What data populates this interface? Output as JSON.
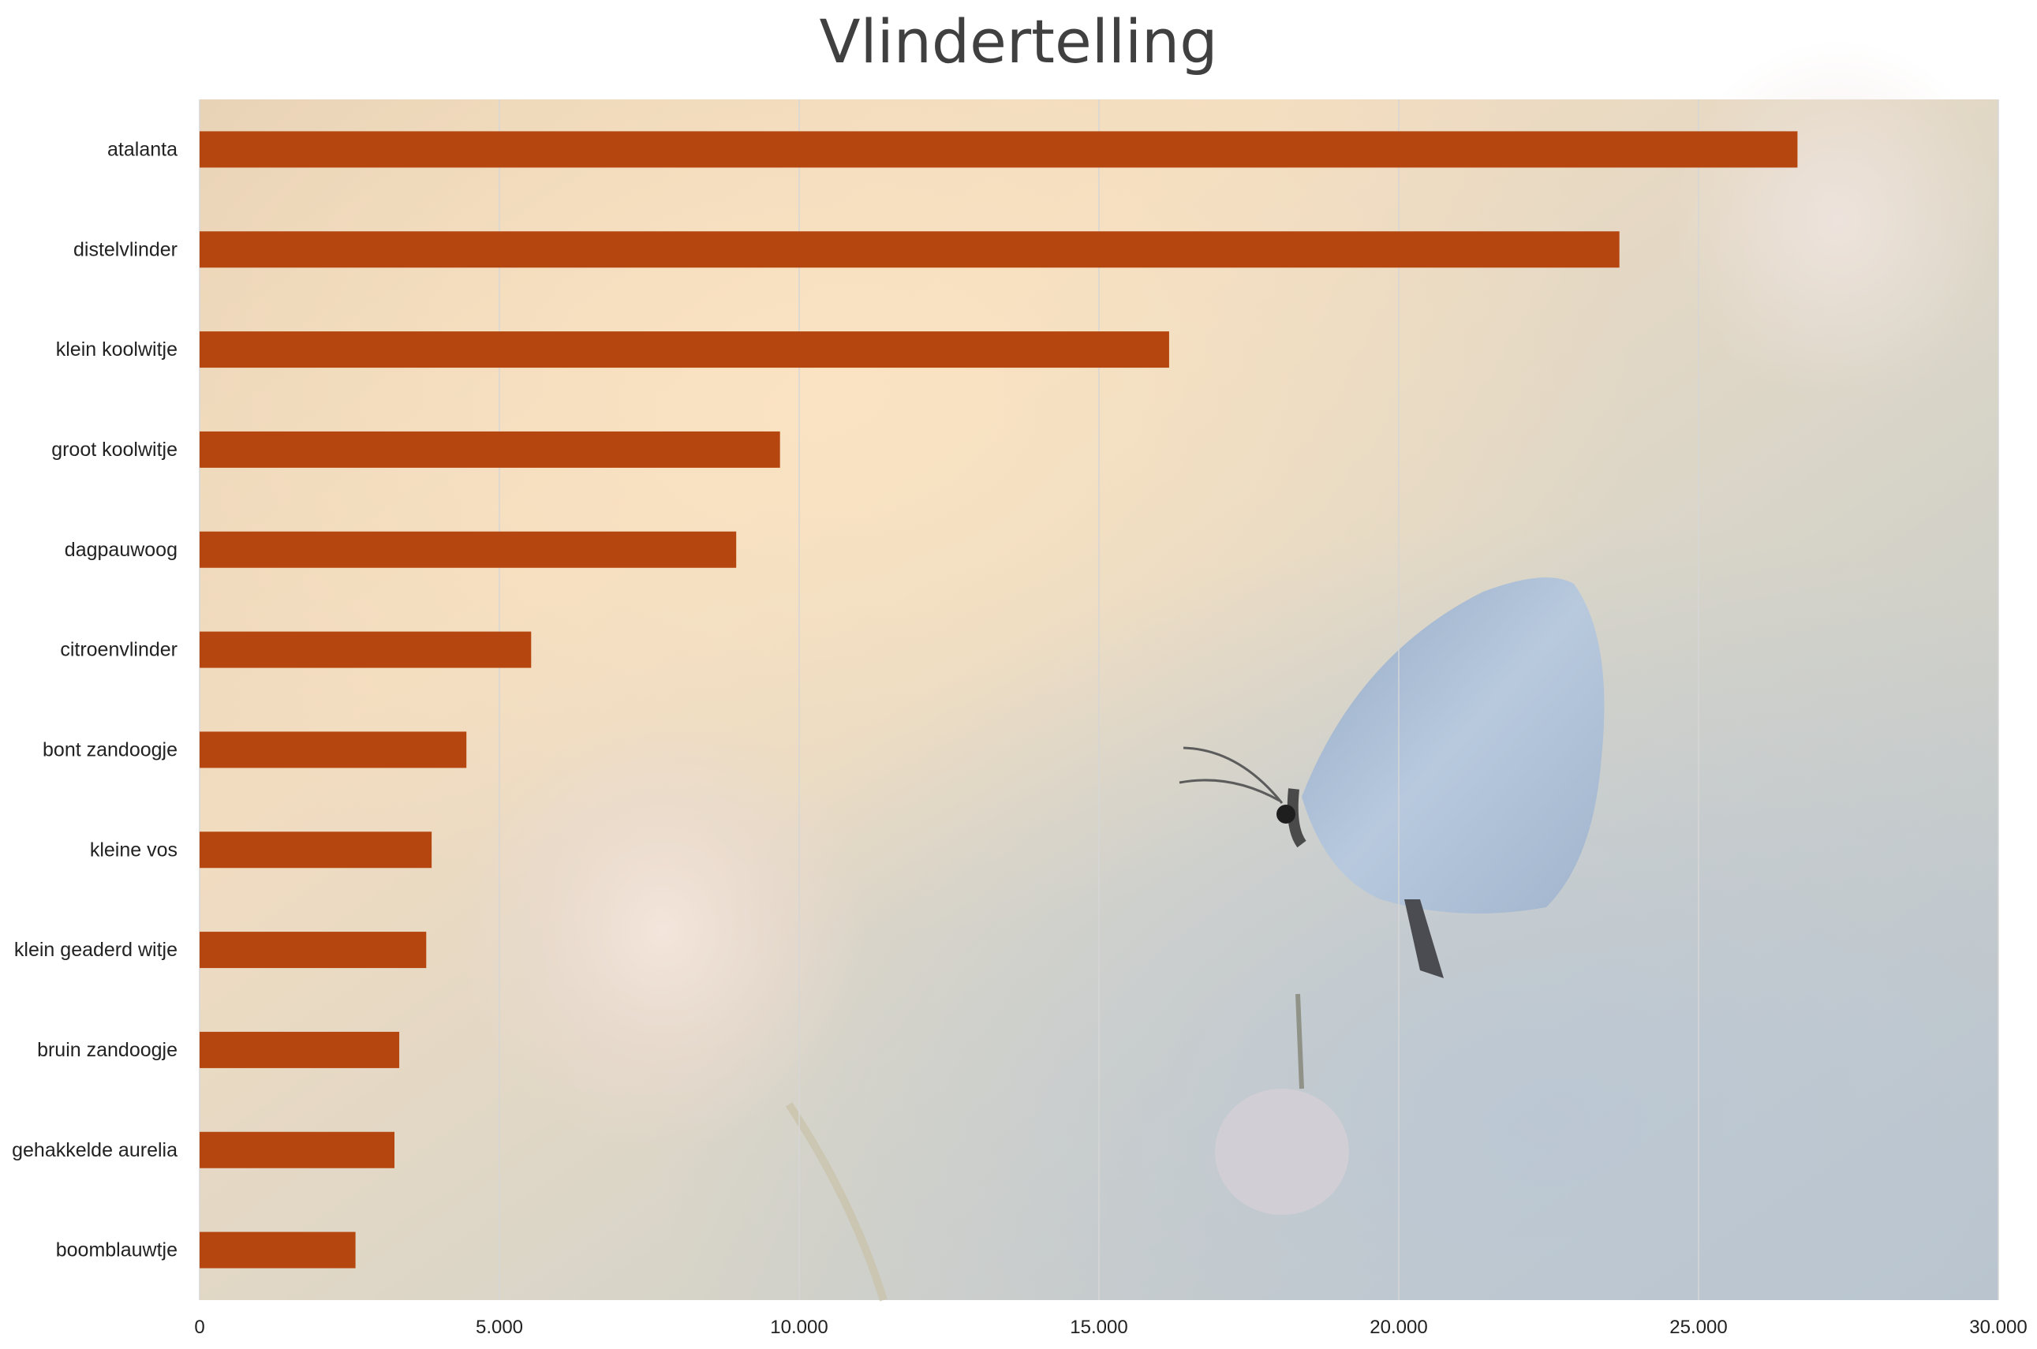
{
  "chart_data": {
    "type": "bar",
    "orientation": "horizontal",
    "title": "Vlindertelling",
    "xlabel": "",
    "ylabel": "",
    "categories": [
      "atalanta",
      "distelvlinder",
      "klein koolwitje",
      "groot koolwitje",
      "dagpauwoog",
      "citroenvlinder",
      "bont zandoogje",
      "kleine vos",
      "klein geaderd witje",
      "bruin zandoogje",
      "gehakkelde aurelia",
      "boomblauwtje"
    ],
    "values": [
      26650,
      23680,
      16170,
      9680,
      8950,
      5530,
      4450,
      3870,
      3780,
      3330,
      3250,
      2600
    ],
    "xlim": [
      0,
      30000
    ],
    "xticks": [
      0,
      5000,
      10000,
      15000,
      20000,
      25000,
      30000
    ],
    "xtick_labels": [
      "0",
      "5.000",
      "10.000",
      "15.000",
      "20.000",
      "25.000",
      "30.000"
    ],
    "grid": "vertical",
    "legend": "none",
    "bar_color": "#b5460f",
    "background": "photo of a blue butterfly on a clover flower"
  }
}
